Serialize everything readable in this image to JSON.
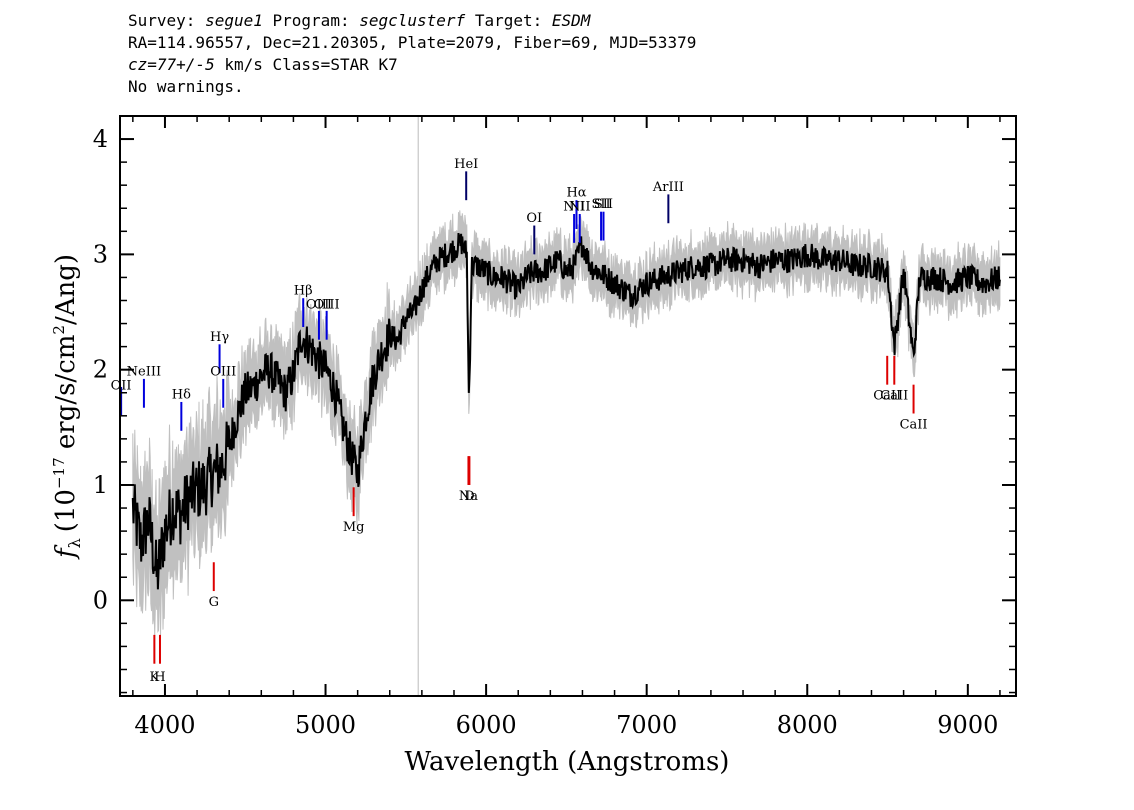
{
  "header": {
    "survey_label": "Survey:",
    "survey": "segue1",
    "program_label": "Program:",
    "program": "segclusterf",
    "target_label": "Target:",
    "target": "ESDM",
    "line2": "RA=114.96557, Dec=21.20305, Plate=2079, Fiber=69, MJD=53379",
    "redshift": "cz=77+/-5",
    "redshift_unit": "km/s",
    "class": "Class=STAR K7",
    "warnings": "No warnings."
  },
  "chart_data": {
    "type": "line",
    "xlabel": "Wavelength (Angstroms)",
    "ylabel_prefix": "f",
    "ylabel_sub": "λ",
    "ylabel_units_a": "(10",
    "ylabel_exp": "−17",
    "ylabel_units_b": " erg/s/cm",
    "ylabel_exp2": "2",
    "ylabel_units_c": "/Ang)",
    "xlim": [
      3720,
      9300
    ],
    "ylim": [
      -0.83,
      4.2
    ],
    "xticks": [
      4000,
      5000,
      6000,
      7000,
      8000,
      9000
    ],
    "xtick_labels": [
      "4000",
      "5000",
      "6000",
      "7000",
      "8000",
      "9000"
    ],
    "yticks": [
      0,
      1,
      2,
      3,
      4
    ],
    "ytick_labels": [
      "0",
      "1",
      "2",
      "3",
      "4"
    ],
    "sky_line_x": 5577,
    "series": [
      {
        "color": "#000000",
        "x": [
          3800,
          3850,
          3900,
          3950,
          4000,
          4050,
          4100,
          4150,
          4200,
          4250,
          4300,
          4350,
          4400,
          4450,
          4500,
          4550,
          4600,
          4650,
          4700,
          4750,
          4800,
          4850,
          4900,
          4950,
          5000,
          5050,
          5100,
          5150,
          5200,
          5250,
          5300,
          5350,
          5400,
          5450,
          5500,
          5550,
          5600,
          5650,
          5700,
          5750,
          5800,
          5850,
          5880,
          5893,
          5910,
          5950,
          6000,
          6050,
          6100,
          6150,
          6200,
          6250,
          6300,
          6350,
          6400,
          6450,
          6500,
          6550,
          6600,
          6650,
          6700,
          6750,
          6800,
          6850,
          6900,
          6950,
          7000,
          7100,
          7200,
          7300,
          7400,
          7500,
          7600,
          7700,
          7800,
          7900,
          8000,
          8100,
          8200,
          8300,
          8400,
          8500,
          8542,
          8600,
          8662,
          8700,
          8800,
          8900,
          9000,
          9100,
          9200
        ],
        "y": [
          0.8,
          0.5,
          0.7,
          0.2,
          0.6,
          0.8,
          0.75,
          0.9,
          0.95,
          1.0,
          1.1,
          1.15,
          1.35,
          1.6,
          1.8,
          1.85,
          1.95,
          2.0,
          1.9,
          1.8,
          1.95,
          2.3,
          2.2,
          2.1,
          2.0,
          1.85,
          1.55,
          1.3,
          1.1,
          1.6,
          1.95,
          2.15,
          2.3,
          2.25,
          2.45,
          2.5,
          2.7,
          2.85,
          2.95,
          3.0,
          3.05,
          3.1,
          3.0,
          1.7,
          2.9,
          2.9,
          2.85,
          2.8,
          2.8,
          2.75,
          2.7,
          2.8,
          2.85,
          2.85,
          2.9,
          2.95,
          2.85,
          2.9,
          3.1,
          2.9,
          2.85,
          2.8,
          2.75,
          2.7,
          2.65,
          2.7,
          2.75,
          2.8,
          2.85,
          2.9,
          2.9,
          2.95,
          2.95,
          2.9,
          2.95,
          2.95,
          3.0,
          2.95,
          2.95,
          2.9,
          2.9,
          2.85,
          2.2,
          2.85,
          2.1,
          2.8,
          2.8,
          2.75,
          2.8,
          2.75,
          2.8
        ]
      }
    ],
    "emission_lines": [
      {
        "label": "OII",
        "x": 3727,
        "y1": 1.6,
        "y2": 1.85,
        "label_y": 1.83,
        "color": "#0000aa"
      },
      {
        "label": "NeIII",
        "x": 3869,
        "y1": 1.67,
        "y2": 1.92,
        "label_y": 1.95,
        "color": "#0000dd"
      },
      {
        "label": "Hδ",
        "x": 4102,
        "y1": 1.47,
        "y2": 1.72,
        "label_y": 1.75,
        "color": "#0000dd"
      },
      {
        "label": "Hγ",
        "x": 4340,
        "y1": 1.97,
        "y2": 2.22,
        "label_y": 2.25,
        "color": "#0000dd"
      },
      {
        "label": "OIII",
        "x": 4363,
        "y1": 1.67,
        "y2": 1.92,
        "label_y": 1.95,
        "color": "#0000dd"
      },
      {
        "label": "Hβ",
        "x": 4861,
        "y1": 2.37,
        "y2": 2.62,
        "label_y": 2.65,
        "color": "#0000dd"
      },
      {
        "label": "OIII",
        "x": 4959,
        "y1": 2.26,
        "y2": 2.51,
        "label_y": 2.53,
        "color": "#0000dd"
      },
      {
        "label": "OIII",
        "x": 5007,
        "y1": 2.26,
        "y2": 2.51,
        "label_y": 2.53,
        "color": "#0000dd"
      },
      {
        "label": "HeI",
        "x": 5876,
        "y1": 3.47,
        "y2": 3.72,
        "label_y": 3.75,
        "color": "#000066"
      },
      {
        "label": "OI",
        "x": 6300,
        "y1": 3.0,
        "y2": 3.25,
        "label_y": 3.28,
        "color": "#000066"
      },
      {
        "label": "NII",
        "x": 6548,
        "y1": 3.1,
        "y2": 3.35,
        "label_y": 3.38,
        "color": "#0000dd"
      },
      {
        "label": "Hα",
        "x": 6563,
        "y1": 3.22,
        "y2": 3.47,
        "label_y": 3.5,
        "color": "#0000dd"
      },
      {
        "label": "NII",
        "x": 6583,
        "y1": 3.1,
        "y2": 3.35,
        "label_y": 3.38,
        "color": "#0000dd"
      },
      {
        "label": "SII",
        "x": 6716,
        "y1": 3.12,
        "y2": 3.37,
        "label_y": 3.4,
        "color": "#0000dd"
      },
      {
        "label": "SII",
        "x": 6731,
        "y1": 3.12,
        "y2": 3.37,
        "label_y": 3.4,
        "color": "#0000dd"
      },
      {
        "label": "ArIII",
        "x": 7135,
        "y1": 3.27,
        "y2": 3.52,
        "label_y": 3.55,
        "color": "#000066"
      }
    ],
    "absorption_lines": [
      {
        "label": "K",
        "x": 3934,
        "y1": -0.55,
        "y2": -0.3,
        "label_y": -0.7,
        "color": "#dd0000"
      },
      {
        "label": "H",
        "x": 3969,
        "y1": -0.55,
        "y2": -0.3,
        "label_y": -0.7,
        "color": "#dd0000"
      },
      {
        "label": "G",
        "x": 4304,
        "y1": 0.08,
        "y2": 0.33,
        "label_y": -0.05,
        "color": "#dd0000"
      },
      {
        "label": "Mg",
        "x": 5175,
        "y1": 0.73,
        "y2": 0.98,
        "label_y": 0.6,
        "color": "#dd0000"
      },
      {
        "label": "Na",
        "x": 5890,
        "y1": 1.0,
        "y2": 1.25,
        "label_y": 0.87,
        "color": "#dd0000"
      },
      {
        "label": "D",
        "x": 5896,
        "y1": 1.0,
        "y2": 1.25,
        "label_y": 0.87,
        "color": "#dd0000"
      },
      {
        "label": "CaII",
        "x": 8498,
        "y1": 1.87,
        "y2": 2.12,
        "label_y": 1.74,
        "color": "#dd0000"
      },
      {
        "label": "CaII",
        "x": 8542,
        "y1": 1.87,
        "y2": 2.12,
        "label_y": 1.74,
        "color": "#dd0000"
      },
      {
        "label": "CaII",
        "x": 8662,
        "y1": 1.62,
        "y2": 1.87,
        "label_y": 1.49,
        "color": "#dd0000"
      }
    ]
  },
  "colors": {
    "spectrum": "#000000",
    "error_band": "#c0c0c0",
    "emission": "#0000dd",
    "absorption": "#dd0000"
  }
}
